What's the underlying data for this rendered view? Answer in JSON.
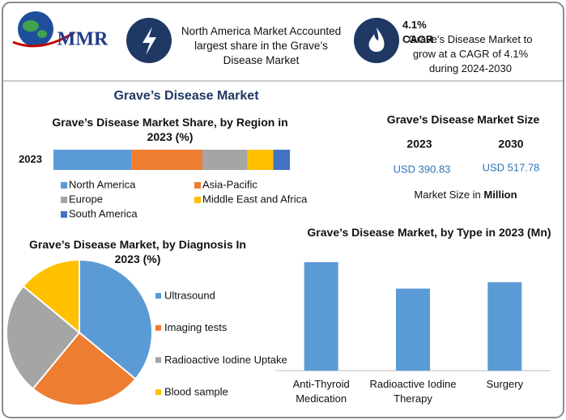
{
  "header": {
    "logo": "MMR",
    "info_1": "North America Market Accounted largest share in the Grave’s Disease Market",
    "info_2_title": "4.1% CAGR",
    "info_2": "Grave’s Disease Market to grow at a CAGR of 4.1% during 2024-2030"
  },
  "title": "Grave’s Disease Market",
  "market_size": {
    "title": "Grave’s Disease Market Size",
    "years": [
      "2023",
      "2030"
    ],
    "values": [
      "USD 390.83",
      "USD 517.78"
    ],
    "note": "Market Size in ",
    "note_unit": "Million"
  },
  "chart_data": [
    {
      "type": "stacked-bar",
      "title": "Grave’s Disease Market Share, by Region in 2023 (%)",
      "categories": [
        "2023"
      ],
      "xlim": [
        0,
        100
      ],
      "series": [
        {
          "name": "North America",
          "color": "#5b9bd5",
          "values": [
            33
          ]
        },
        {
          "name": "Asia-Pacific",
          "color": "#ed7d31",
          "values": [
            30
          ]
        },
        {
          "name": "Europe",
          "color": "#a5a5a5",
          "values": [
            19
          ]
        },
        {
          "name": "Middle East and Africa",
          "color": "#ffc000",
          "values": [
            11
          ]
        },
        {
          "name": "South America",
          "color": "#4472c4",
          "values": [
            7
          ]
        }
      ]
    },
    {
      "type": "pie",
      "title": "Grave’s Disease Market, by Diagnosis In 2023 (%)",
      "categories": [
        "Ultrasound",
        "Imaging tests",
        "Radioactive Iodine Uptake",
        "Blood sample"
      ],
      "values": [
        36,
        25,
        25,
        14
      ],
      "colors": [
        "#5b9bd5",
        "#ed7d31",
        "#a5a5a5",
        "#ffc000"
      ]
    },
    {
      "type": "bar",
      "title": "Grave’s Disease Market, by Type in 2023 (Mn)",
      "categories": [
        "Anti-Thyroid Medication",
        "Radioactive Iodine Therapy",
        "Surgery"
      ],
      "values": [
        152,
        115,
        124
      ],
      "color": "#5b9bd5"
    }
  ]
}
